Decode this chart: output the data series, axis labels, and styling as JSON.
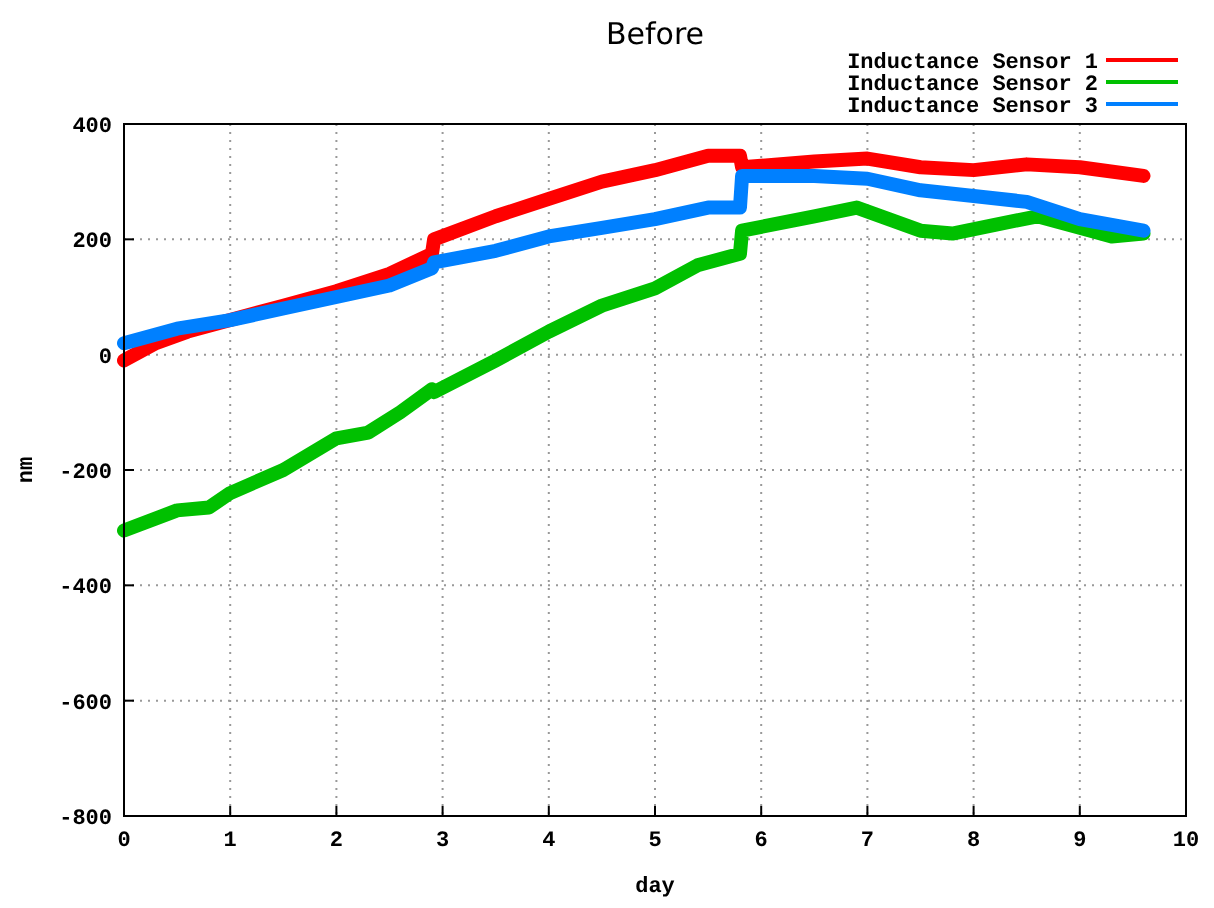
{
  "chart_data": {
    "type": "line",
    "title": "Before",
    "xlabel": "day",
    "ylabel": "nm",
    "xlim": [
      0,
      10
    ],
    "xticks": [
      0,
      1,
      2,
      3,
      4,
      5,
      6,
      7,
      8,
      9,
      10
    ],
    "ylim": [
      -800,
      400
    ],
    "yticks": [
      -800,
      -600,
      -400,
      -200,
      0,
      200,
      400
    ],
    "grid": true,
    "legend": "top right",
    "marker": "none",
    "line_style": "solid",
    "series": [
      {
        "name": "Inductance Sensor 1",
        "color": "#ff0000",
        "x": [
          0,
          0.3,
          0.6,
          1,
          1.5,
          2,
          2.5,
          2.9,
          2.92,
          3.5,
          4,
          4.5,
          5,
          5.5,
          5.8,
          5.82,
          6.5,
          7,
          7.5,
          8,
          8.5,
          9,
          9.6
        ],
        "values": [
          -10,
          20,
          40,
          60,
          85,
          110,
          140,
          175,
          200,
          240,
          270,
          300,
          320,
          345,
          345,
          325,
          335,
          340,
          325,
          320,
          330,
          325,
          310
        ]
      },
      {
        "name": "Inductance Sensor 2",
        "color": "#00c000",
        "x": [
          0,
          0.5,
          0.8,
          1,
          1.5,
          2,
          2.3,
          2.6,
          2.9,
          2.92,
          3.5,
          4,
          4.5,
          5,
          5.4,
          5.8,
          5.82,
          6.5,
          6.9,
          7.2,
          7.5,
          7.8,
          8.2,
          8.6,
          9,
          9.3,
          9.6
        ],
        "values": [
          -305,
          -270,
          -265,
          -240,
          -200,
          -145,
          -135,
          -100,
          -60,
          -65,
          -10,
          40,
          85,
          115,
          155,
          175,
          215,
          240,
          255,
          235,
          215,
          210,
          225,
          240,
          220,
          205,
          210
        ]
      },
      {
        "name": "Inductance Sensor 3",
        "color": "#0080ff",
        "x": [
          0,
          0.5,
          1,
          1.5,
          2,
          2.5,
          2.9,
          2.92,
          3.5,
          4,
          4.5,
          5,
          5.5,
          5.8,
          5.82,
          6.5,
          7,
          7.5,
          8,
          8.5,
          9,
          9.6
        ],
        "values": [
          20,
          45,
          60,
          80,
          100,
          120,
          150,
          160,
          180,
          205,
          220,
          235,
          255,
          255,
          310,
          310,
          305,
          285,
          275,
          265,
          235,
          215
        ]
      }
    ]
  }
}
